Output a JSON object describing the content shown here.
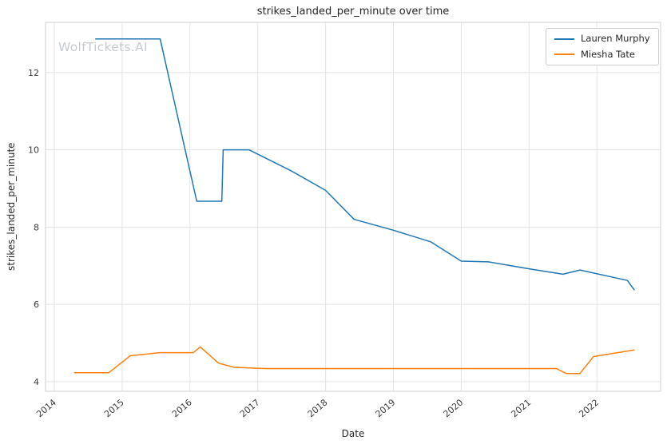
{
  "watermark": "WolfTickets.AI",
  "chart_data": {
    "type": "line",
    "title": "strikes_landed_per_minute over time",
    "xlabel": "Date",
    "ylabel": "strikes_landed_per_minute",
    "x_ticks": [
      2014,
      2015,
      2016,
      2017,
      2018,
      2019,
      2020,
      2021,
      2022
    ],
    "y_ticks": [
      4,
      6,
      8,
      10,
      12
    ],
    "xlim": [
      2013.87,
      2022.94
    ],
    "ylim": [
      3.75,
      13.3
    ],
    "grid": true,
    "legend": {
      "position": "upper right",
      "entries": [
        "Lauren Murphy",
        "Miesha Tate"
      ]
    },
    "series": [
      {
        "name": "Lauren Murphy",
        "color": "#1f77b4",
        "points": [
          [
            2014.61,
            12.87
          ],
          [
            2015.56,
            12.87
          ],
          [
            2016.1,
            8.67
          ],
          [
            2016.47,
            8.67
          ],
          [
            2016.49,
            10.0
          ],
          [
            2016.87,
            10.0
          ],
          [
            2017.5,
            9.45
          ],
          [
            2018.0,
            8.95
          ],
          [
            2018.42,
            8.2
          ],
          [
            2019.0,
            7.92
          ],
          [
            2019.55,
            7.62
          ],
          [
            2020.0,
            7.12
          ],
          [
            2020.4,
            7.1
          ],
          [
            2021.0,
            6.92
          ],
          [
            2021.5,
            6.78
          ],
          [
            2021.75,
            6.89
          ],
          [
            2022.45,
            6.62
          ],
          [
            2022.55,
            6.38
          ]
        ]
      },
      {
        "name": "Miesha Tate",
        "color": "#ff7f0e",
        "points": [
          [
            2014.3,
            4.23
          ],
          [
            2014.8,
            4.23
          ],
          [
            2015.12,
            4.67
          ],
          [
            2015.55,
            4.75
          ],
          [
            2016.05,
            4.75
          ],
          [
            2016.15,
            4.9
          ],
          [
            2016.42,
            4.48
          ],
          [
            2016.65,
            4.37
          ],
          [
            2017.1,
            4.34
          ],
          [
            2021.4,
            4.34
          ],
          [
            2021.55,
            4.21
          ],
          [
            2021.75,
            4.21
          ],
          [
            2021.95,
            4.65
          ],
          [
            2022.55,
            4.82
          ]
        ]
      }
    ]
  }
}
